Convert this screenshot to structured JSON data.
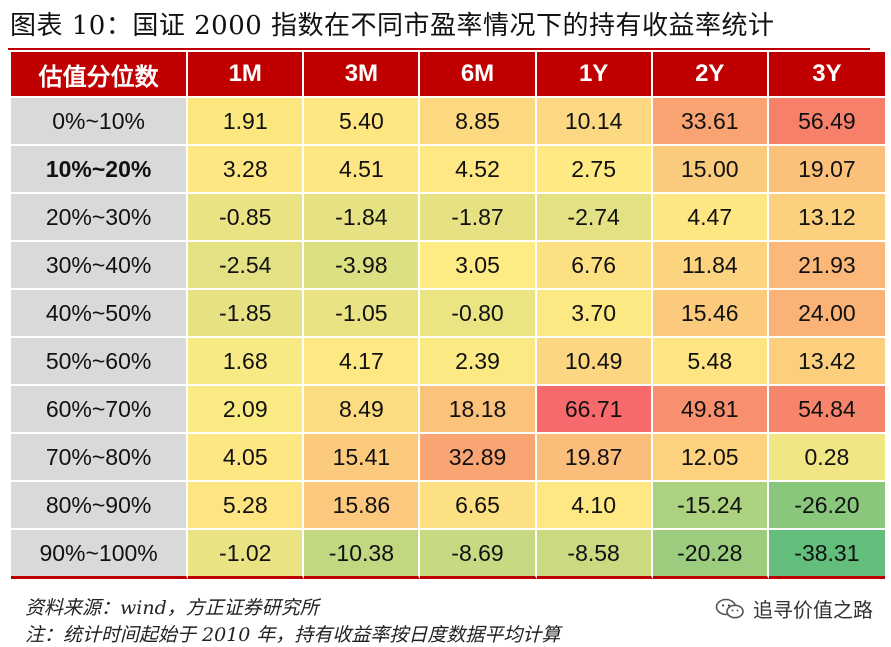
{
  "title": "图表 10：国证 2000 指数在不同市盈率情况下的持有收益率统计",
  "table": {
    "header": [
      "估值分位数",
      "1M",
      "3M",
      "6M",
      "1Y",
      "2Y",
      "3Y"
    ],
    "rows": [
      {
        "label": "0%~10%",
        "bold": false,
        "values": [
          "1.91",
          "5.40",
          "8.85",
          "10.14",
          "33.61",
          "56.49"
        ],
        "colors": [
          "#fbe77e",
          "#fee682",
          "#fcd881",
          "#fdd883",
          "#f9a373",
          "#f7806b"
        ]
      },
      {
        "label": "10%~20%",
        "bold": true,
        "values": [
          "3.28",
          "4.51",
          "4.52",
          "2.75",
          "15.00",
          "19.07"
        ],
        "colors": [
          "#fee782",
          "#fee783",
          "#fee883",
          "#fee983",
          "#fbcb7d",
          "#fbc07a"
        ]
      },
      {
        "label": "20%~30%",
        "bold": false,
        "values": [
          "-0.85",
          "-1.84",
          "-1.87",
          "-2.74",
          "4.47",
          "13.12"
        ],
        "colors": [
          "#eae383",
          "#e6e283",
          "#e6e283",
          "#e3e183",
          "#fee682",
          "#fbd07e"
        ]
      },
      {
        "label": "30%~40%",
        "bold": false,
        "values": [
          "-2.54",
          "-3.98",
          "3.05",
          "6.76",
          "11.84",
          "21.93"
        ],
        "colors": [
          "#e3e183",
          "#dcdf82",
          "#feeb84",
          "#fde082",
          "#fcd37f",
          "#fbb878"
        ]
      },
      {
        "label": "40%~50%",
        "bold": false,
        "values": [
          "-1.85",
          "-1.05",
          "-0.80",
          "3.70",
          "15.46",
          "24.00"
        ],
        "colors": [
          "#e6e283",
          "#e9e383",
          "#ebe483",
          "#fde983",
          "#fbca7d",
          "#fab277"
        ]
      },
      {
        "label": "50%~60%",
        "bold": false,
        "values": [
          "1.68",
          "4.17",
          "2.39",
          "10.49",
          "5.48",
          "13.42"
        ],
        "colors": [
          "#f7e984",
          "#fee883",
          "#fbea84",
          "#fcd680",
          "#fee482",
          "#fbcf7e"
        ]
      },
      {
        "label": "60%~70%",
        "bold": false,
        "values": [
          "2.09",
          "8.49",
          "18.18",
          "66.71",
          "49.81",
          "54.84"
        ],
        "colors": [
          "#faea84",
          "#fddc81",
          "#fbc27b",
          "#f8696b",
          "#f89070",
          "#f7856c"
        ]
      },
      {
        "label": "70%~80%",
        "bold": false,
        "values": [
          "4.05",
          "15.41",
          "32.89",
          "19.87",
          "12.05",
          "0.28"
        ],
        "colors": [
          "#fee783",
          "#fbca7d",
          "#f9a573",
          "#fbbe7a",
          "#fcd27f",
          "#f0e684"
        ]
      },
      {
        "label": "80%~90%",
        "bold": false,
        "values": [
          "5.28",
          "15.86",
          "6.65",
          "4.10",
          "-15.24",
          "-26.20"
        ],
        "colors": [
          "#fee582",
          "#fbc87d",
          "#fde082",
          "#fee883",
          "#acd27f",
          "#89c77d"
        ]
      },
      {
        "label": "90%~100%",
        "bold": false,
        "values": [
          "-1.02",
          "-10.38",
          "-8.69",
          "-8.58",
          "-20.28",
          "-38.31"
        ],
        "colors": [
          "#e9e383",
          "#c1d881",
          "#c8da81",
          "#c9da81",
          "#9ccd7e",
          "#63be7b"
        ]
      }
    ]
  },
  "source": "资料来源：wind，方正证券研究所",
  "note": "注：统计时间起始于 2010 年，持有收益率按日度数据平均计算",
  "watermark": "追寻价值之路",
  "colors": {
    "header_bg": "#c00000",
    "header_text": "#ffffff",
    "rowhead_bg": "#d9d9d9"
  }
}
